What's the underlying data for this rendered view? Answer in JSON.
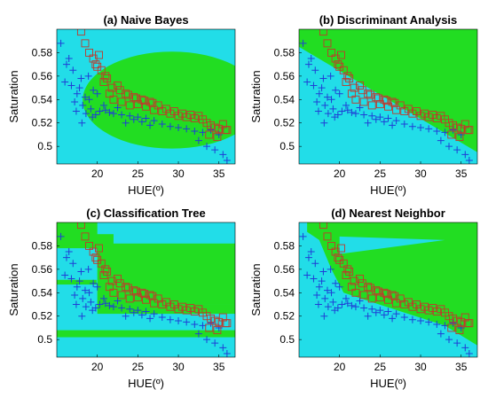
{
  "colors": {
    "region_class_a": "#22dd22",
    "region_class_b": "#22dde8",
    "marker_plus": "#1f3fd6",
    "marker_square": "#c0392b"
  },
  "chart_data": [
    {
      "type": "scatter",
      "panel": "a",
      "title": "(a) Naive Bayes",
      "xlabel": "HUE(º)",
      "ylabel": "Saturation",
      "xlim": [
        15,
        37
      ],
      "ylim": [
        0.485,
        0.6
      ],
      "xticks": [
        "20",
        "25",
        "30",
        "35"
      ],
      "yticks": [
        "0.5",
        "0.52",
        "0.54",
        "0.56",
        "0.58"
      ],
      "boundary": "ellipse",
      "series": [
        {
          "marker": "plus",
          "x": [
            15.5,
            16.5,
            16,
            17,
            17.5,
            18,
            18.5,
            18.2,
            17.8,
            19,
            19.5,
            18.6,
            17.2,
            16.8,
            19.2,
            19.8,
            20,
            18.9,
            17.4,
            16.2,
            18.1,
            19.4,
            20.3,
            21,
            22,
            23,
            24,
            25,
            26,
            22.5,
            23.5,
            24.5,
            25.5,
            26.5,
            27,
            28,
            29,
            30,
            31,
            32,
            33,
            34,
            35,
            32.5,
            33.5,
            34.5,
            35.5,
            36,
            20.8,
            21.5
          ],
          "y": [
            0.588,
            0.575,
            0.555,
            0.565,
            0.545,
            0.558,
            0.542,
            0.535,
            0.55,
            0.54,
            0.548,
            0.528,
            0.538,
            0.552,
            0.532,
            0.527,
            0.545,
            0.56,
            0.53,
            0.57,
            0.52,
            0.525,
            0.53,
            0.531,
            0.528,
            0.527,
            0.526,
            0.525,
            0.524,
            0.533,
            0.52,
            0.523,
            0.521,
            0.518,
            0.522,
            0.519,
            0.517,
            0.516,
            0.515,
            0.513,
            0.512,
            0.514,
            0.51,
            0.505,
            0.5,
            0.497,
            0.493,
            0.488,
            0.535,
            0.529
          ]
        },
        {
          "marker": "square",
          "x": [
            18,
            18.5,
            19,
            19.5,
            20,
            20.5,
            21,
            21.5,
            22,
            22.5,
            23,
            23.5,
            24,
            24.5,
            25,
            25.5,
            26,
            26.5,
            27,
            27.5,
            28,
            28.5,
            29,
            29.5,
            30,
            30.5,
            31,
            31.5,
            32,
            32.5,
            33,
            33.5,
            34,
            34.5,
            35,
            35.5,
            36,
            19.8,
            20.8,
            21.8,
            22.8,
            23.8,
            24.8,
            25.8,
            26.8,
            20.2,
            21.2,
            33.8,
            34.8,
            35.8
          ],
          "y": [
            0.598,
            0.588,
            0.58,
            0.575,
            0.568,
            0.565,
            0.56,
            0.545,
            0.54,
            0.552,
            0.538,
            0.545,
            0.535,
            0.542,
            0.536,
            0.54,
            0.534,
            0.538,
            0.531,
            0.535,
            0.53,
            0.532,
            0.528,
            0.53,
            0.526,
            0.528,
            0.525,
            0.527,
            0.524,
            0.526,
            0.523,
            0.52,
            0.518,
            0.516,
            0.515,
            0.519,
            0.514,
            0.57,
            0.555,
            0.55,
            0.548,
            0.544,
            0.541,
            0.539,
            0.537,
            0.578,
            0.558,
            0.51,
            0.508,
            0.514
          ]
        }
      ]
    },
    {
      "type": "scatter",
      "panel": "b",
      "title": "(b) Discriminant Analysis",
      "xlabel": "HUE(º)",
      "ylabel": "Saturation",
      "xlim": [
        15,
        37
      ],
      "ylim": [
        0.485,
        0.6
      ],
      "xticks": [
        "20",
        "25",
        "30",
        "35"
      ],
      "yticks": [
        "0.5",
        "0.52",
        "0.54",
        "0.56",
        "0.58"
      ],
      "boundary": "linear",
      "series": [
        {
          "marker": "plus",
          "x": [
            15.5,
            16.5,
            16,
            17,
            17.5,
            18,
            18.5,
            18.2,
            17.8,
            19,
            19.5,
            18.6,
            17.2,
            16.8,
            19.2,
            19.8,
            20,
            18.9,
            17.4,
            16.2,
            18.1,
            19.4,
            20.3,
            21,
            22,
            23,
            24,
            25,
            26,
            22.5,
            23.5,
            24.5,
            25.5,
            26.5,
            27,
            28,
            29,
            30,
            31,
            32,
            33,
            34,
            35,
            32.5,
            33.5,
            34.5,
            35.5,
            36,
            20.8,
            21.5
          ],
          "y": [
            0.588,
            0.575,
            0.555,
            0.565,
            0.545,
            0.558,
            0.542,
            0.535,
            0.55,
            0.54,
            0.548,
            0.528,
            0.538,
            0.552,
            0.532,
            0.527,
            0.545,
            0.56,
            0.53,
            0.57,
            0.52,
            0.525,
            0.53,
            0.531,
            0.528,
            0.527,
            0.526,
            0.525,
            0.524,
            0.533,
            0.52,
            0.523,
            0.521,
            0.518,
            0.522,
            0.519,
            0.517,
            0.516,
            0.515,
            0.513,
            0.512,
            0.514,
            0.51,
            0.505,
            0.5,
            0.497,
            0.493,
            0.488,
            0.535,
            0.529
          ]
        },
        {
          "marker": "square",
          "x": [
            18,
            18.5,
            19,
            19.5,
            20,
            20.5,
            21,
            21.5,
            22,
            22.5,
            23,
            23.5,
            24,
            24.5,
            25,
            25.5,
            26,
            26.5,
            27,
            27.5,
            28,
            28.5,
            29,
            29.5,
            30,
            30.5,
            31,
            31.5,
            32,
            32.5,
            33,
            33.5,
            34,
            34.5,
            35,
            35.5,
            36,
            19.8,
            20.8,
            21.8,
            22.8,
            23.8,
            24.8,
            25.8,
            26.8,
            20.2,
            21.2,
            33.8,
            34.8,
            35.8
          ],
          "y": [
            0.598,
            0.588,
            0.58,
            0.575,
            0.568,
            0.565,
            0.56,
            0.545,
            0.54,
            0.552,
            0.538,
            0.545,
            0.535,
            0.542,
            0.536,
            0.54,
            0.534,
            0.538,
            0.531,
            0.535,
            0.53,
            0.532,
            0.528,
            0.53,
            0.526,
            0.528,
            0.525,
            0.527,
            0.524,
            0.526,
            0.523,
            0.52,
            0.518,
            0.516,
            0.515,
            0.519,
            0.514,
            0.57,
            0.555,
            0.55,
            0.548,
            0.544,
            0.541,
            0.539,
            0.537,
            0.578,
            0.558,
            0.51,
            0.508,
            0.514
          ]
        }
      ]
    },
    {
      "type": "scatter",
      "panel": "c",
      "title": "(c) Classification Tree",
      "xlabel": "HUE(º)",
      "ylabel": "Saturation",
      "xlim": [
        15,
        37
      ],
      "ylim": [
        0.485,
        0.6
      ],
      "xticks": [
        "20",
        "25",
        "30",
        "35"
      ],
      "yticks": [
        "0.5",
        "0.52",
        "0.54",
        "0.56",
        "0.58"
      ],
      "boundary": "tree",
      "series": [
        {
          "marker": "plus",
          "x": [
            15.5,
            16.5,
            16,
            17,
            17.5,
            18,
            18.5,
            18.2,
            17.8,
            19,
            19.5,
            18.6,
            17.2,
            16.8,
            19.2,
            19.8,
            20,
            18.9,
            17.4,
            16.2,
            18.1,
            19.4,
            20.3,
            21,
            22,
            23,
            24,
            25,
            26,
            22.5,
            23.5,
            24.5,
            25.5,
            26.5,
            27,
            28,
            29,
            30,
            31,
            32,
            33,
            34,
            35,
            32.5,
            33.5,
            34.5,
            35.5,
            36,
            20.8,
            21.5
          ],
          "y": [
            0.588,
            0.575,
            0.555,
            0.565,
            0.545,
            0.558,
            0.542,
            0.535,
            0.55,
            0.54,
            0.548,
            0.528,
            0.538,
            0.552,
            0.532,
            0.527,
            0.545,
            0.56,
            0.53,
            0.57,
            0.52,
            0.525,
            0.53,
            0.531,
            0.528,
            0.527,
            0.526,
            0.525,
            0.524,
            0.533,
            0.52,
            0.523,
            0.521,
            0.518,
            0.522,
            0.519,
            0.517,
            0.516,
            0.515,
            0.513,
            0.512,
            0.514,
            0.51,
            0.505,
            0.5,
            0.497,
            0.493,
            0.488,
            0.535,
            0.529
          ]
        },
        {
          "marker": "square",
          "x": [
            18,
            18.5,
            19,
            19.5,
            20,
            20.5,
            21,
            21.5,
            22,
            22.5,
            23,
            23.5,
            24,
            24.5,
            25,
            25.5,
            26,
            26.5,
            27,
            27.5,
            28,
            28.5,
            29,
            29.5,
            30,
            30.5,
            31,
            31.5,
            32,
            32.5,
            33,
            33.5,
            34,
            34.5,
            35,
            35.5,
            36,
            19.8,
            20.8,
            21.8,
            22.8,
            23.8,
            24.8,
            25.8,
            26.8,
            20.2,
            21.2,
            33.8,
            34.8,
            35.8
          ],
          "y": [
            0.598,
            0.588,
            0.58,
            0.575,
            0.568,
            0.565,
            0.56,
            0.545,
            0.54,
            0.552,
            0.538,
            0.545,
            0.535,
            0.542,
            0.536,
            0.54,
            0.534,
            0.538,
            0.531,
            0.535,
            0.53,
            0.532,
            0.528,
            0.53,
            0.526,
            0.528,
            0.525,
            0.527,
            0.524,
            0.526,
            0.523,
            0.52,
            0.518,
            0.516,
            0.515,
            0.519,
            0.514,
            0.57,
            0.555,
            0.55,
            0.548,
            0.544,
            0.541,
            0.539,
            0.537,
            0.578,
            0.558,
            0.51,
            0.508,
            0.514
          ]
        }
      ]
    },
    {
      "type": "scatter",
      "panel": "d",
      "title": "(d) Nearest Neighbor",
      "xlabel": "HUE(º)",
      "ylabel": "Saturation",
      "xlim": [
        15,
        37
      ],
      "ylim": [
        0.485,
        0.6
      ],
      "xticks": [
        "20",
        "25",
        "30",
        "35"
      ],
      "yticks": [
        "0.5",
        "0.52",
        "0.54",
        "0.56",
        "0.58"
      ],
      "boundary": "nearest",
      "series": [
        {
          "marker": "plus",
          "x": [
            15.5,
            16.5,
            16,
            17,
            17.5,
            18,
            18.5,
            18.2,
            17.8,
            19,
            19.5,
            18.6,
            17.2,
            16.8,
            19.2,
            19.8,
            20,
            18.9,
            17.4,
            16.2,
            18.1,
            19.4,
            20.3,
            21,
            22,
            23,
            24,
            25,
            26,
            22.5,
            23.5,
            24.5,
            25.5,
            26.5,
            27,
            28,
            29,
            30,
            31,
            32,
            33,
            34,
            35,
            32.5,
            33.5,
            34.5,
            35.5,
            36,
            20.8,
            21.5
          ],
          "y": [
            0.588,
            0.575,
            0.555,
            0.565,
            0.545,
            0.558,
            0.542,
            0.535,
            0.55,
            0.54,
            0.548,
            0.528,
            0.538,
            0.552,
            0.532,
            0.527,
            0.545,
            0.56,
            0.53,
            0.57,
            0.52,
            0.525,
            0.53,
            0.531,
            0.528,
            0.527,
            0.526,
            0.525,
            0.524,
            0.533,
            0.52,
            0.523,
            0.521,
            0.518,
            0.522,
            0.519,
            0.517,
            0.516,
            0.515,
            0.513,
            0.512,
            0.514,
            0.51,
            0.505,
            0.5,
            0.497,
            0.493,
            0.488,
            0.535,
            0.529
          ]
        },
        {
          "marker": "square",
          "x": [
            18,
            18.5,
            19,
            19.5,
            20,
            20.5,
            21,
            21.5,
            22,
            22.5,
            23,
            23.5,
            24,
            24.5,
            25,
            25.5,
            26,
            26.5,
            27,
            27.5,
            28,
            28.5,
            29,
            29.5,
            30,
            30.5,
            31,
            31.5,
            32,
            32.5,
            33,
            33.5,
            34,
            34.5,
            35,
            35.5,
            36,
            19.8,
            20.8,
            21.8,
            22.8,
            23.8,
            24.8,
            25.8,
            26.8,
            20.2,
            21.2,
            33.8,
            34.8,
            35.8
          ],
          "y": [
            0.598,
            0.588,
            0.58,
            0.575,
            0.568,
            0.565,
            0.56,
            0.545,
            0.54,
            0.552,
            0.538,
            0.545,
            0.535,
            0.542,
            0.536,
            0.54,
            0.534,
            0.538,
            0.531,
            0.535,
            0.53,
            0.532,
            0.528,
            0.53,
            0.526,
            0.528,
            0.525,
            0.527,
            0.524,
            0.526,
            0.523,
            0.52,
            0.518,
            0.516,
            0.515,
            0.519,
            0.514,
            0.57,
            0.555,
            0.55,
            0.548,
            0.544,
            0.541,
            0.539,
            0.537,
            0.578,
            0.558,
            0.51,
            0.508,
            0.514
          ]
        }
      ]
    }
  ]
}
